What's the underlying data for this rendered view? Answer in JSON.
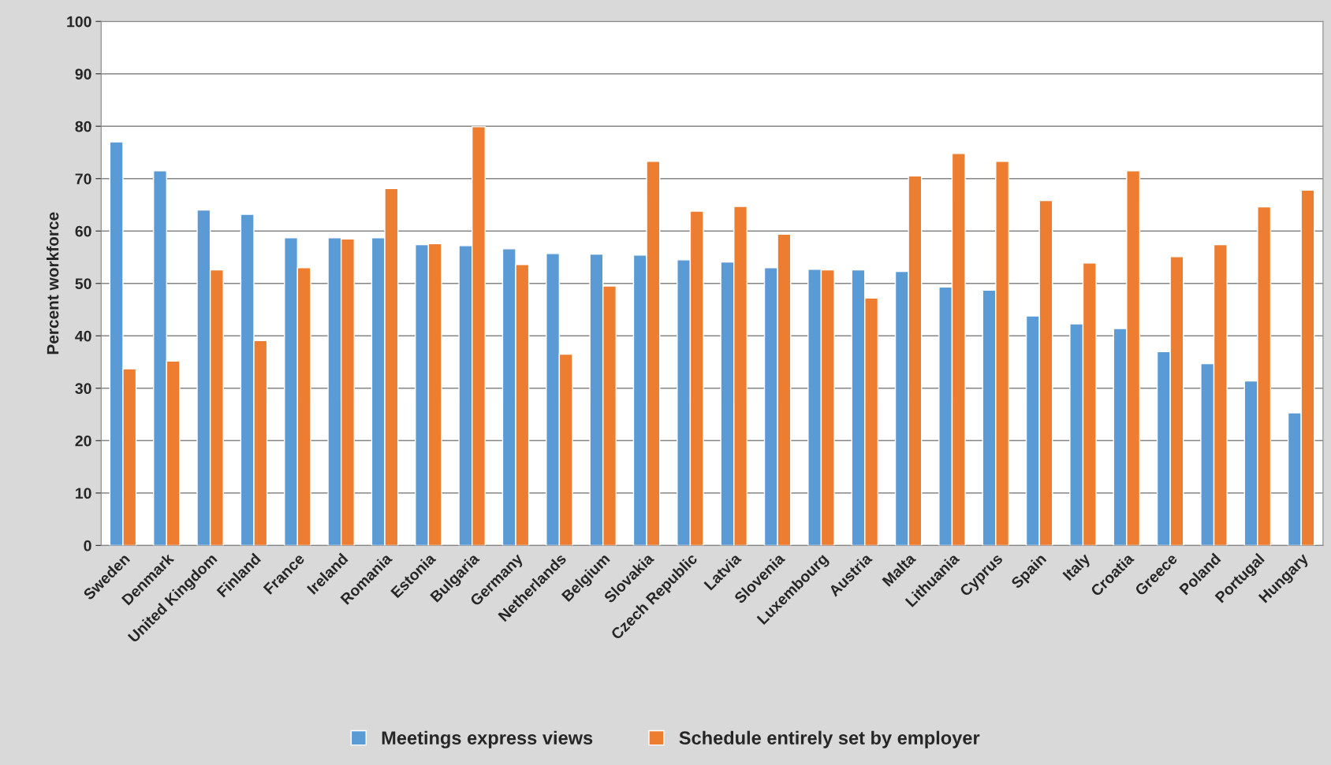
{
  "chart_data": {
    "type": "bar",
    "ylabel": "Percent workforce",
    "categories": [
      "Sweden",
      "Denmark",
      "United Kingdom",
      "Finland",
      "France",
      "Ireland",
      "Romania",
      "Estonia",
      "Bulgaria",
      "Germany",
      "Netherlands",
      "Belgium",
      "Slovakia",
      "Czech Republic",
      "Latvia",
      "Slovenia",
      "Luxembourg",
      "Austria",
      "Malta",
      "Lithuania",
      "Cyprus",
      "Spain",
      "Italy",
      "Croatia",
      "Greece",
      "Poland",
      "Portugal",
      "Hungary"
    ],
    "series": [
      {
        "name": "Meetings express views",
        "color": "#5b9bd5",
        "values": [
          77,
          71.5,
          64,
          63.2,
          58.7,
          58.7,
          58.7,
          57.4,
          57.2,
          56.6,
          55.7,
          55.6,
          55.4,
          54.5,
          54.1,
          53,
          52.7,
          52.6,
          52.3,
          49.3,
          48.7,
          43.8,
          42.3,
          41.4,
          37,
          34.7,
          31.4,
          25.3
        ]
      },
      {
        "name": "Schedule entirely set by employer",
        "color": "#ed7d31",
        "values": [
          33.7,
          35.2,
          52.6,
          39.1,
          53,
          58.5,
          68.1,
          57.6,
          79.9,
          53.6,
          36.5,
          49.5,
          73.3,
          63.8,
          64.7,
          59.4,
          52.6,
          47.2,
          70.5,
          74.8,
          73.3,
          65.8,
          53.9,
          71.5,
          55.1,
          57.4,
          64.6,
          67.8
        ]
      }
    ],
    "ylim": [
      0,
      100
    ],
    "yticks": [
      0,
      10,
      20,
      30,
      40,
      50,
      60,
      70,
      80,
      90,
      100
    ],
    "grid": "y",
    "legend": "bottom"
  }
}
